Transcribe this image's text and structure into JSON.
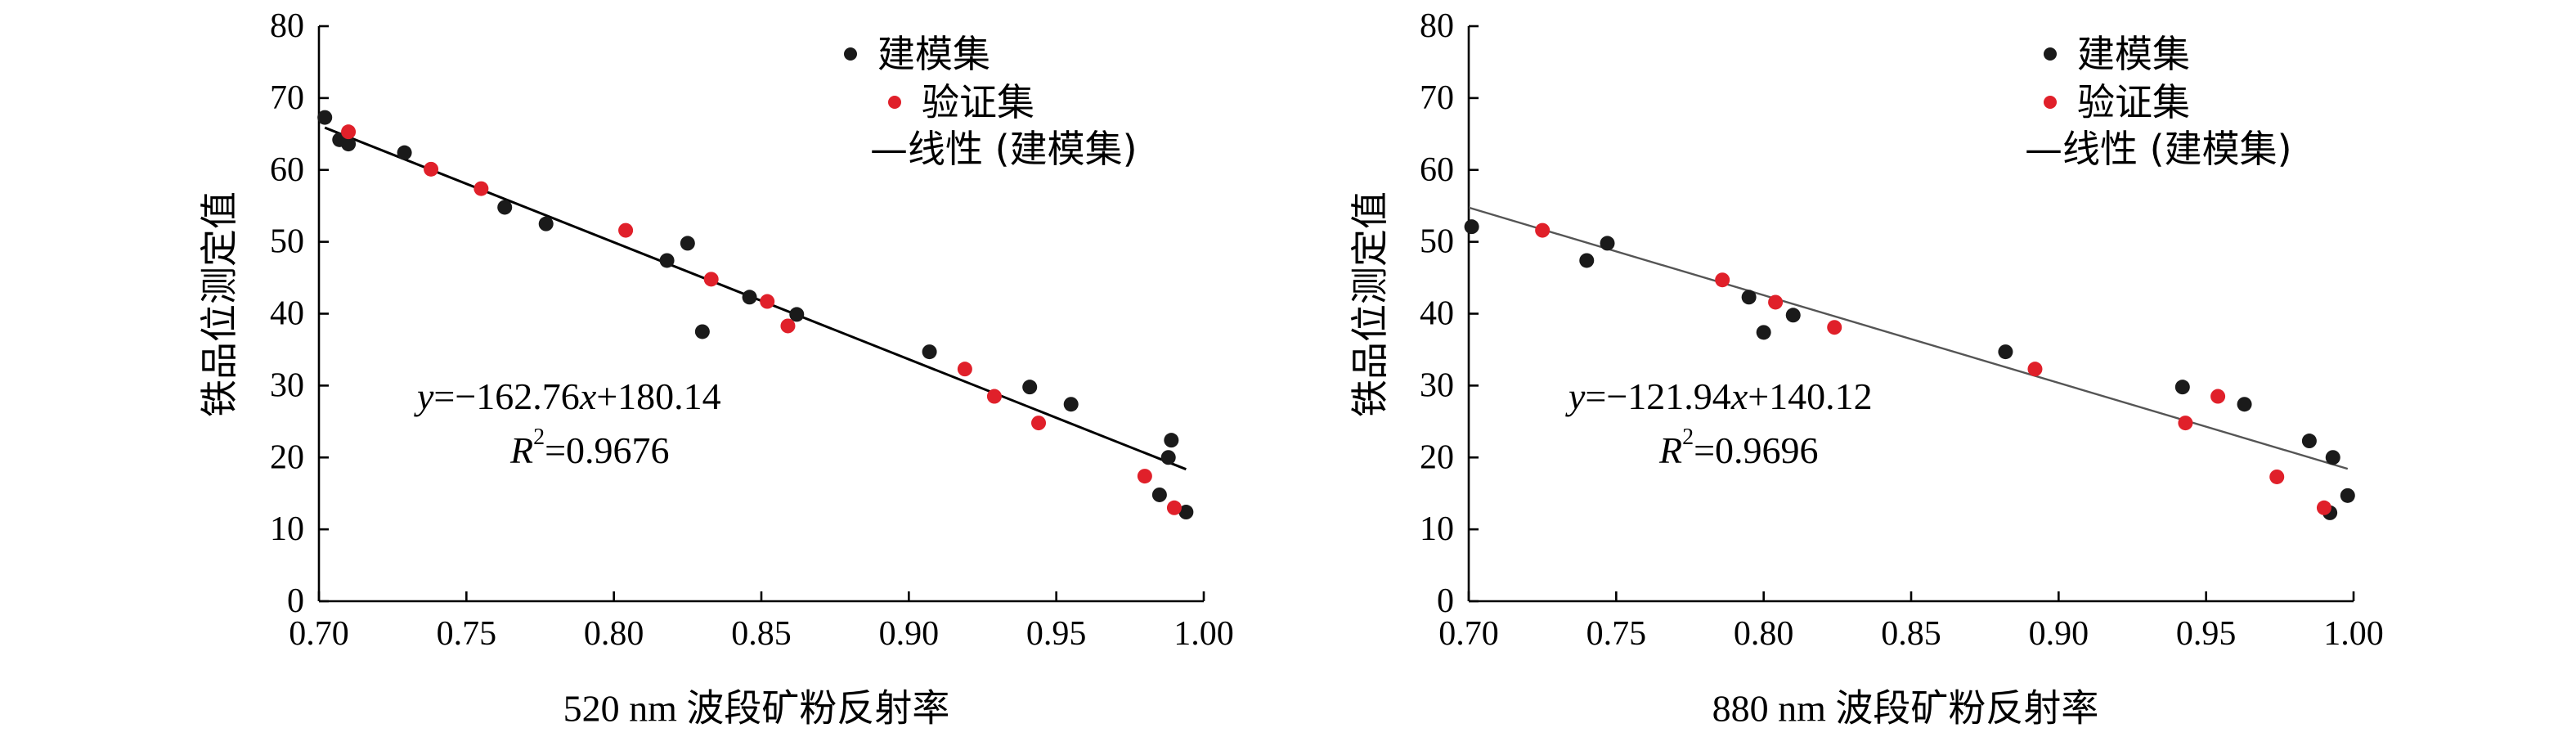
{
  "chart_data": [
    {
      "type": "scatter",
      "xlabel": "520 nm 波段矿粉反射率",
      "ylabel": "铁品位测定值",
      "xlim": [
        0.7,
        1.0
      ],
      "ylim": [
        0,
        80
      ],
      "xticks": [
        "0.70",
        "0.75",
        "0.80",
        "0.85",
        "0.90",
        "0.95",
        "1.00"
      ],
      "yticks": [
        "0",
        "10",
        "20",
        "30",
        "40",
        "50",
        "60",
        "70",
        "80"
      ],
      "legend_position": "top-right",
      "legend": [
        "建模集",
        "验证集",
        "—线性 (建模集)"
      ],
      "series": [
        {
          "name": "建模集",
          "color": "#1a1a1a",
          "points": [
            [
              0.702,
              67.3
            ],
            [
              0.707,
              64.2
            ],
            [
              0.71,
              63.6
            ],
            [
              0.729,
              62.4
            ],
            [
              0.763,
              54.8
            ],
            [
              0.777,
              52.5
            ],
            [
              0.818,
              47.4
            ],
            [
              0.825,
              49.8
            ],
            [
              0.83,
              37.5
            ],
            [
              0.846,
              42.3
            ],
            [
              0.862,
              39.9
            ],
            [
              0.907,
              34.7
            ],
            [
              0.941,
              29.8
            ],
            [
              0.955,
              27.4
            ],
            [
              0.985,
              14.8
            ],
            [
              0.988,
              20.0
            ],
            [
              0.989,
              22.4
            ],
            [
              0.994,
              12.4
            ]
          ]
        },
        {
          "name": "验证集",
          "color": "#e0202a",
          "points": [
            [
              0.71,
              65.3
            ],
            [
              0.738,
              60.1
            ],
            [
              0.755,
              57.4
            ],
            [
              0.804,
              51.6
            ],
            [
              0.833,
              44.8
            ],
            [
              0.852,
              41.7
            ],
            [
              0.859,
              38.3
            ],
            [
              0.919,
              32.3
            ],
            [
              0.929,
              28.5
            ],
            [
              0.944,
              24.8
            ],
            [
              0.98,
              17.4
            ],
            [
              0.99,
              13.0
            ]
          ]
        }
      ],
      "fit": {
        "slope": -162.76,
        "intercept": 180.14,
        "x_range": [
          0.702,
          0.994
        ]
      },
      "equation": {
        "y": "y",
        "body": "=−162.76",
        "x": "x",
        "tail": "+180.14"
      },
      "r2": {
        "r": "R",
        "sup": "2",
        "tail": "=0.9676"
      }
    },
    {
      "type": "scatter",
      "xlabel": "880 nm 波段矿粉反射率",
      "ylabel": "铁品位测定值",
      "xlim": [
        0.7,
        1.0
      ],
      "ylim": [
        0,
        80
      ],
      "xticks": [
        "0.70",
        "0.75",
        "0.80",
        "0.85",
        "0.90",
        "0.95",
        "1.00"
      ],
      "yticks": [
        "0",
        "10",
        "20",
        "30",
        "40",
        "50",
        "60",
        "70",
        "80"
      ],
      "legend_position": "top-right",
      "legend": [
        "建模集",
        "验证集",
        "—线性 (建模集)"
      ],
      "series": [
        {
          "name": "建模集",
          "color": "#1a1a1a",
          "points": [
            [
              0.701,
              52.1
            ],
            [
              0.74,
              47.4
            ],
            [
              0.747,
              49.8
            ],
            [
              0.795,
              42.3
            ],
            [
              0.8,
              37.4
            ],
            [
              0.81,
              39.8
            ],
            [
              0.882,
              34.7
            ],
            [
              0.942,
              29.8
            ],
            [
              0.963,
              27.4
            ],
            [
              0.985,
              22.3
            ],
            [
              0.993,
              20.0
            ],
            [
              0.992,
              12.3
            ],
            [
              0.998,
              14.7
            ]
          ]
        },
        {
          "name": "验证集",
          "color": "#e0202a",
          "points": [
            [
              0.725,
              51.6
            ],
            [
              0.786,
              44.7
            ],
            [
              0.804,
              41.6
            ],
            [
              0.824,
              38.1
            ],
            [
              0.892,
              32.3
            ],
            [
              0.943,
              24.8
            ],
            [
              0.954,
              28.5
            ],
            [
              0.974,
              17.3
            ],
            [
              0.99,
              13.0
            ]
          ]
        }
      ],
      "fit": {
        "slope": -121.94,
        "intercept": 140.12,
        "x_range": [
          0.7,
          0.998
        ]
      },
      "equation": {
        "y": "y",
        "body": "=−121.94",
        "x": "x",
        "tail": "+140.12"
      },
      "r2": {
        "r": "R",
        "sup": "2",
        "tail": "=0.9696"
      }
    }
  ]
}
